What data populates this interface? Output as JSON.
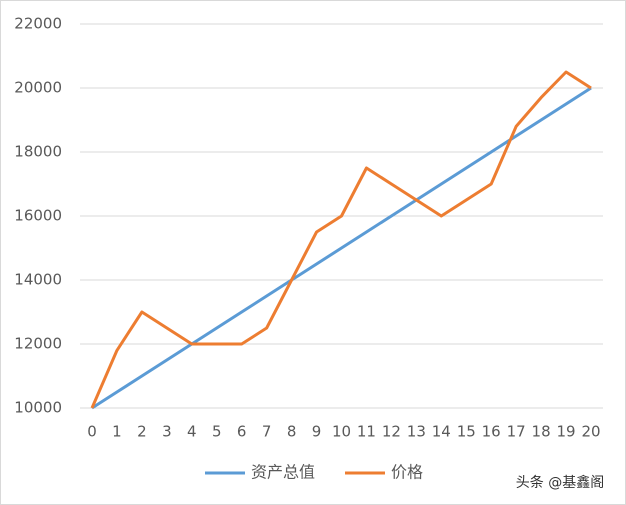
{
  "chart_data": {
    "type": "line",
    "x": [
      0,
      1,
      2,
      3,
      4,
      5,
      6,
      7,
      8,
      9,
      10,
      11,
      12,
      13,
      14,
      15,
      16,
      17,
      18,
      19,
      20
    ],
    "xlim": [
      0,
      20
    ],
    "xticks": [
      0,
      1,
      2,
      3,
      4,
      5,
      6,
      7,
      8,
      9,
      10,
      11,
      12,
      13,
      14,
      15,
      16,
      17,
      18,
      19,
      20
    ],
    "ylim": [
      10000,
      22000
    ],
    "yticks": [
      10000,
      12000,
      14000,
      16000,
      18000,
      20000,
      22000
    ],
    "grid": true,
    "legend": "bottom",
    "series": [
      {
        "name": "资产总值",
        "color": "#5b9bd5",
        "values": [
          10000,
          10500,
          11000,
          11500,
          12000,
          12500,
          13000,
          13500,
          14000,
          14500,
          15000,
          15500,
          16000,
          16500,
          17000,
          17500,
          18000,
          18500,
          19000,
          19500,
          20000
        ]
      },
      {
        "name": "价格",
        "color": "#ed7d31",
        "values": [
          10000,
          11800,
          13000,
          12500,
          12000,
          12000,
          12000,
          12500,
          14000,
          15500,
          16000,
          17500,
          17000,
          16500,
          16000,
          16500,
          17000,
          18800,
          19700,
          20500,
          20000
        ]
      }
    ],
    "watermark": "头条 @基鑫阁"
  }
}
